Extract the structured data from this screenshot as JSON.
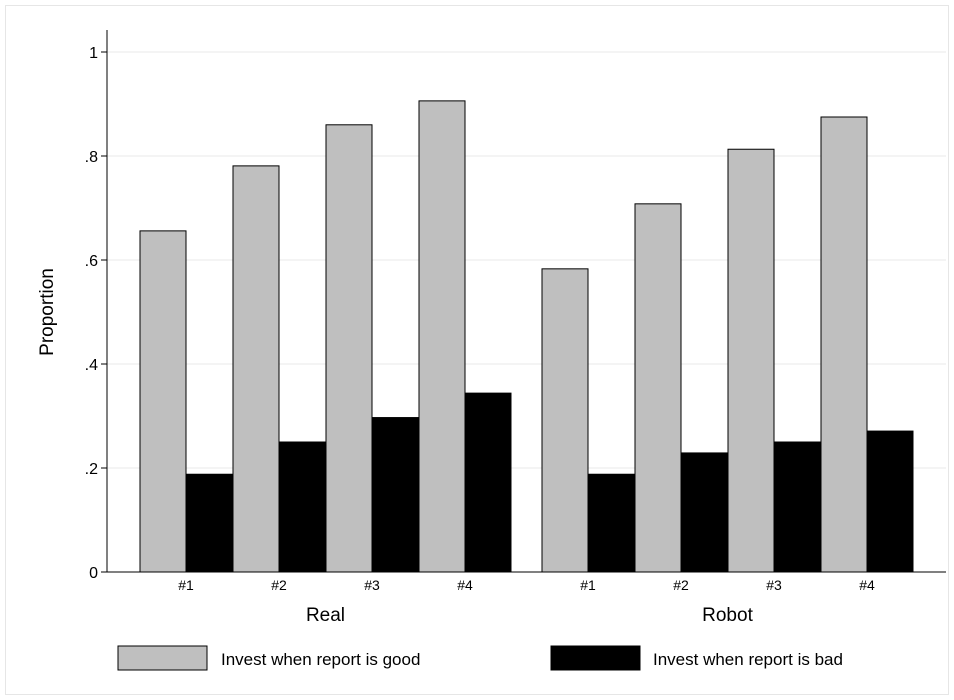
{
  "chart_data": {
    "type": "bar",
    "ylabel": "Proportion",
    "ylim": [
      0,
      1
    ],
    "yticks": [
      {
        "value": 0,
        "label": "0"
      },
      {
        "value": 0.2,
        "label": ".2"
      },
      {
        "value": 0.4,
        "label": ".4"
      },
      {
        "value": 0.6,
        "label": ".6"
      },
      {
        "value": 0.8,
        "label": ".8"
      },
      {
        "value": 1,
        "label": "1"
      }
    ],
    "grid": true,
    "groups": [
      {
        "label": "Real",
        "categories": [
          "#1",
          "#2",
          "#3",
          "#4"
        ]
      },
      {
        "label": "Robot",
        "categories": [
          "#1",
          "#2",
          "#3",
          "#4"
        ]
      }
    ],
    "series": [
      {
        "name": "Invest when report is good",
        "color": "#bfbfbf",
        "values": [
          [
            0.656,
            0.781,
            0.86,
            0.906
          ],
          [
            0.583,
            0.708,
            0.813,
            0.875
          ]
        ]
      },
      {
        "name": "Invest when report is bad",
        "color": "#000000",
        "values": [
          [
            0.188,
            0.25,
            0.297,
            0.344
          ],
          [
            0.188,
            0.229,
            0.25,
            0.271
          ]
        ]
      }
    ],
    "legend_position": "bottom"
  }
}
